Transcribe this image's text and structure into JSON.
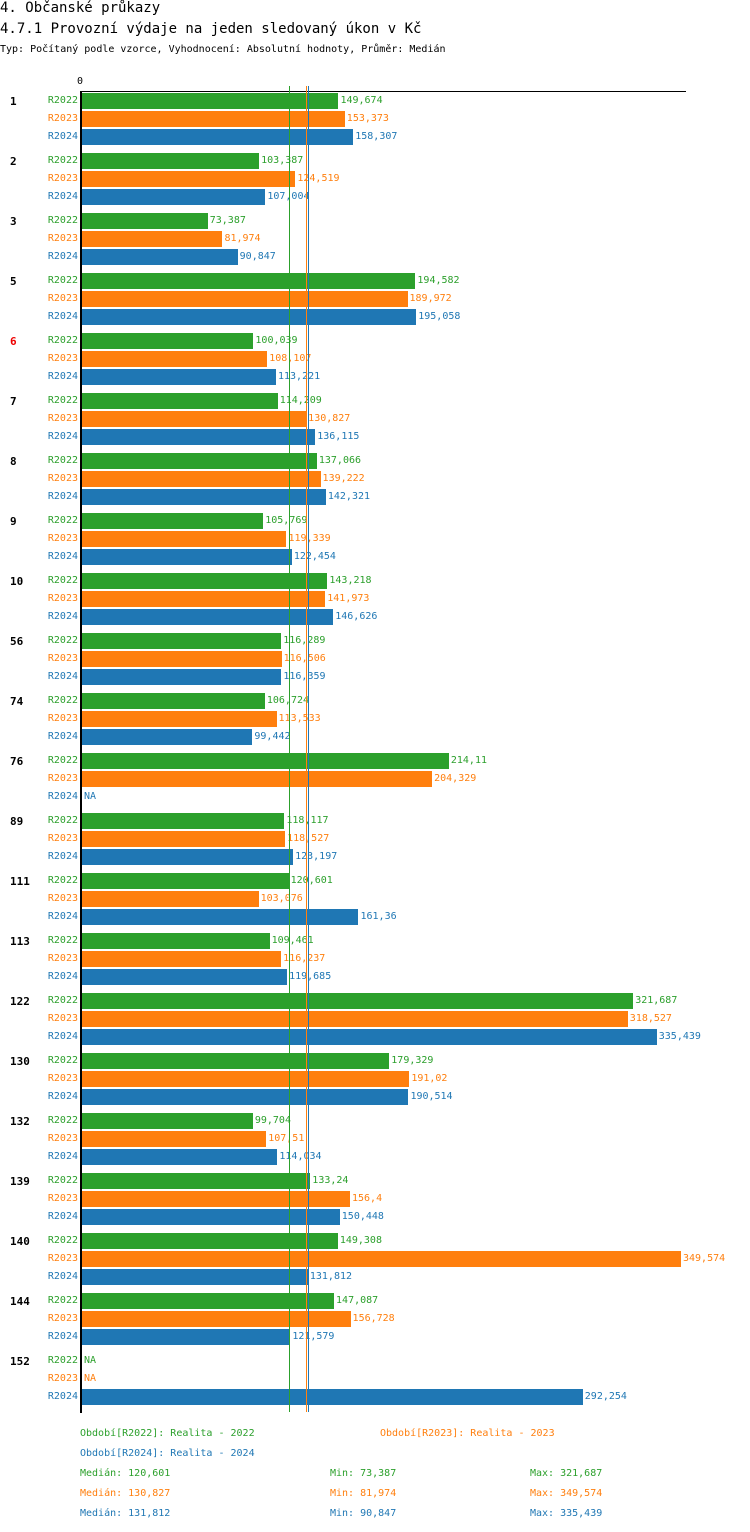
{
  "title": "4. Občanské průkazy",
  "subtitle": "4.7.1 Provozní výdaje na jeden sledovaný úkon v Kč",
  "description": "Typ: Počítaný podle vzorce, Vyhodnocení: Absolutní hodnoty, Průměr: Medián",
  "chart_data": {
    "type": "bar",
    "orientation": "horizontal",
    "axis_zero_label": "0",
    "xlim": [
      0,
      349574
    ],
    "series": [
      {
        "name": "R2022",
        "color": "#2ca02c"
      },
      {
        "name": "R2023",
        "color": "#ff7f0e"
      },
      {
        "name": "R2024",
        "color": "#1f77b4"
      }
    ],
    "groups": [
      {
        "label": "1",
        "values": [
          "149,674",
          "153,373",
          "158,307"
        ]
      },
      {
        "label": "2",
        "values": [
          "103,387",
          "124,519",
          "107,004"
        ]
      },
      {
        "label": "3",
        "values": [
          "73,387",
          "81,974",
          "90,847"
        ]
      },
      {
        "label": "5",
        "values": [
          "194,582",
          "189,972",
          "195,058"
        ]
      },
      {
        "label": "6",
        "highlight": true,
        "values": [
          "100,039",
          "108,107",
          "113,221"
        ]
      },
      {
        "label": "7",
        "values": [
          "114,209",
          "130,827",
          "136,115"
        ]
      },
      {
        "label": "8",
        "values": [
          "137,066",
          "139,222",
          "142,321"
        ]
      },
      {
        "label": "9",
        "values": [
          "105,769",
          "119,339",
          "122,454"
        ]
      },
      {
        "label": "10",
        "values": [
          "143,218",
          "141,973",
          "146,626"
        ]
      },
      {
        "label": "56",
        "values": [
          "116,289",
          "116,506",
          "116,359"
        ]
      },
      {
        "label": "74",
        "values": [
          "106,724",
          "113,533",
          "99,442"
        ]
      },
      {
        "label": "76",
        "values": [
          "214,11",
          "204,329",
          "NA"
        ]
      },
      {
        "label": "89",
        "values": [
          "118,117",
          "118,527",
          "123,197"
        ]
      },
      {
        "label": "111",
        "values": [
          "120,601",
          "103,076",
          "161,36"
        ]
      },
      {
        "label": "113",
        "values": [
          "109,461",
          "116,237",
          "119,685"
        ]
      },
      {
        "label": "122",
        "values": [
          "321,687",
          "318,527",
          "335,439"
        ]
      },
      {
        "label": "130",
        "values": [
          "179,329",
          "191,02",
          "190,514"
        ]
      },
      {
        "label": "132",
        "values": [
          "99,704",
          "107,51",
          "114,034"
        ]
      },
      {
        "label": "139",
        "values": [
          "133,24",
          "156,4",
          "150,448"
        ]
      },
      {
        "label": "140",
        "values": [
          "149,308",
          "349,574",
          "131,812"
        ]
      },
      {
        "label": "144",
        "values": [
          "147,087",
          "156,728",
          "121,579"
        ]
      },
      {
        "label": "152",
        "values": [
          "NA",
          "NA",
          "292,254"
        ]
      }
    ],
    "medians": [
      120601,
      130827,
      131812
    ]
  },
  "legend": {
    "r2022": "Období[R2022]: Realita - 2022",
    "r2023": "Období[R2023]: Realita - 2023",
    "r2024": "Období[R2024]: Realita - 2024"
  },
  "stats": [
    {
      "median": "Medián: 120,601",
      "min": "Min: 73,387",
      "max": "Max: 321,687"
    },
    {
      "median": "Medián: 130,827",
      "min": "Min: 81,974",
      "max": "Max: 349,574"
    },
    {
      "median": "Medián: 131,812",
      "min": "Min: 90,847",
      "max": "Max: 335,439"
    }
  ]
}
